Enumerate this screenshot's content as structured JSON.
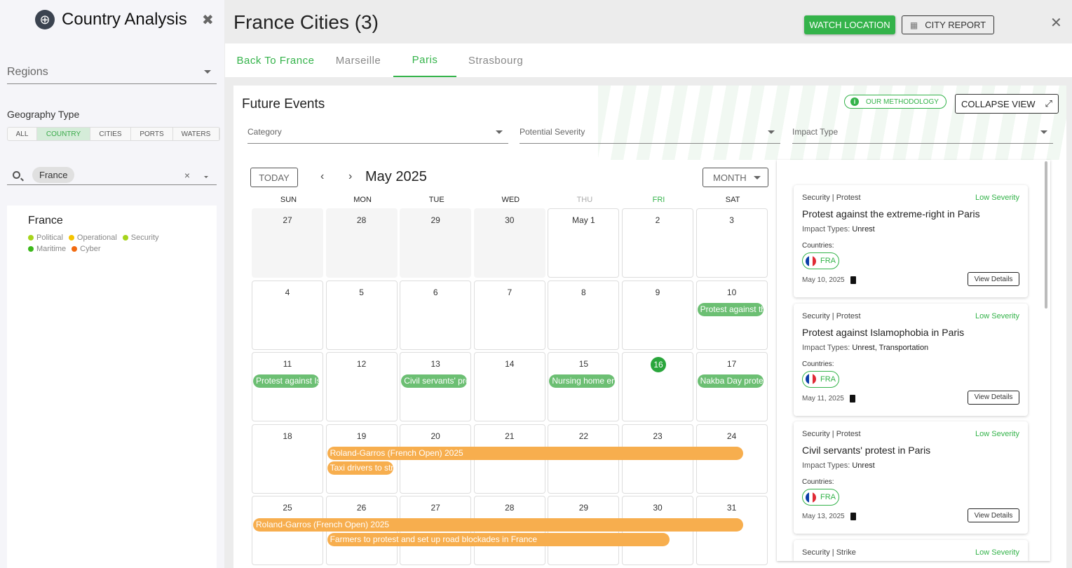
{
  "sidebar": {
    "title": "Country Analysis",
    "regions_placeholder": "Regions",
    "geography_label": "Geography Type",
    "geo_types": [
      "ALL",
      "COUNTRY",
      "CITIES",
      "PORTS",
      "WATERS"
    ],
    "geo_selected": "COUNTRY",
    "search_chip": "France",
    "clear": "×",
    "country": {
      "name": "France",
      "legend": [
        {
          "label": "Political",
          "color": "#a6d41c"
        },
        {
          "label": "Operational",
          "color": "#f5c400"
        },
        {
          "label": "Security",
          "color": "#a6d41c"
        },
        {
          "label": "Maritime",
          "color": "#3cb81a"
        },
        {
          "label": "Cyber",
          "color": "#f26a10"
        }
      ]
    }
  },
  "header": {
    "title": "France Cities (3)",
    "watch": "WATCH LOCATION",
    "report": "CITY REPORT",
    "close": "✕"
  },
  "tabs": [
    {
      "label": "Back To France"
    },
    {
      "label": "Marseille"
    },
    {
      "label": "Paris"
    },
    {
      "label": "Strasbourg"
    }
  ],
  "active_tab": "Paris",
  "events_panel": {
    "title": "Future Events",
    "methodology": "OUR METHODOLOGY",
    "collapse": "COLLAPSE VIEW",
    "filters": [
      "Category",
      "Potential Severity",
      "Impact Type"
    ]
  },
  "calendar": {
    "today_btn": "TODAY",
    "prev": "‹",
    "next": "›",
    "month": "May 2025",
    "view": "MONTH",
    "weekdays": [
      "SUN",
      "MON",
      "TUE",
      "WED",
      "THU",
      "FRI",
      "SAT"
    ],
    "days": [
      "27",
      "28",
      "29",
      "30",
      "May 1",
      "2",
      "3",
      "4",
      "5",
      "6",
      "7",
      "8",
      "9",
      "10",
      "11",
      "12",
      "13",
      "14",
      "15",
      "16",
      "17",
      "18",
      "19",
      "20",
      "21",
      "22",
      "23",
      "24",
      "25",
      "26",
      "27",
      "28",
      "29",
      "30",
      "31"
    ],
    "outside_days": 4,
    "today": "16",
    "events": [
      {
        "title": "Protest against the extreme-right in Paris",
        "start": 10,
        "end": 10,
        "lane": 0,
        "color": "#6cbf73"
      },
      {
        "title": "Protest against Islamophobia in Paris",
        "start": 11,
        "end": 11,
        "lane": 0,
        "color": "#6cbf73"
      },
      {
        "title": "Civil servants' protest in Paris",
        "start": 13,
        "end": 13,
        "lane": 0,
        "color": "#6cbf73"
      },
      {
        "title": "Nursing home en",
        "start": 15,
        "end": 15,
        "lane": 0,
        "color": "#6cbf73"
      },
      {
        "title": "Nakba Day prote",
        "start": 17,
        "end": 17,
        "lane": 0,
        "color": "#6cbf73"
      },
      {
        "title": "Roland-Garros (French Open) 2025",
        "start": 19,
        "end": 24,
        "lane": 0,
        "color": "#f7ae4e"
      },
      {
        "title": "Taxi drivers to str",
        "start": 19,
        "end": 19,
        "lane": 1,
        "color": "#f7ae4e"
      },
      {
        "title": "Roland-Garros (French Open) 2025",
        "start": 25,
        "end": 31,
        "lane": 0,
        "color": "#f7ae4e"
      },
      {
        "title": "Farmers to protest and set up road blockades in France",
        "start": 26,
        "end": 30,
        "lane": 1,
        "color": "#f7ae4e"
      }
    ]
  },
  "event_cards": [
    {
      "category": "Security | Protest",
      "severity": "Low Severity",
      "title": "Protest against the extreme-right in Paris",
      "impact_label": "Impact Types:",
      "impact": "Unrest",
      "countries_label": "Countries:",
      "country": "FRA",
      "date": "May 10, 2025",
      "details": "View Details"
    },
    {
      "category": "Security | Protest",
      "severity": "Low Severity",
      "title": "Protest against Islamophobia in Paris",
      "impact_label": "Impact Types:",
      "impact": "Unrest, Transportation",
      "countries_label": "Countries:",
      "country": "FRA",
      "date": "May 11, 2025",
      "details": "View Details"
    },
    {
      "category": "Security | Protest",
      "severity": "Low Severity",
      "title": "Civil servants' protest in Paris",
      "impact_label": "Impact Types:",
      "impact": "Unrest",
      "countries_label": "Countries:",
      "country": "FRA",
      "date": "May 13, 2025",
      "details": "View Details"
    },
    {
      "category": "Security | Strike",
      "severity": "Low Severity"
    }
  ],
  "colors": {
    "accent": "#34b34a"
  }
}
